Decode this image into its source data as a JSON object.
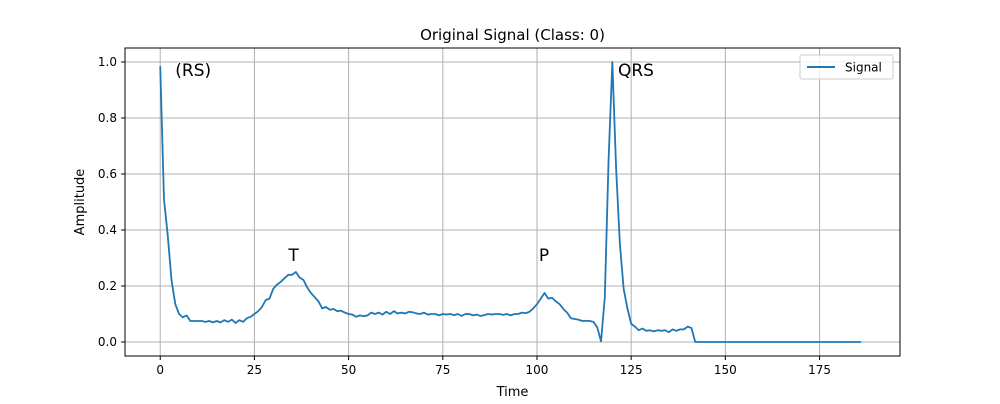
{
  "chart_data": {
    "type": "line",
    "title": "Original Signal (Class: 0)",
    "xlabel": "Time",
    "ylabel": "Amplitude",
    "xlim": [
      -9.35,
      196.35
    ],
    "ylim": [
      -0.05,
      1.05
    ],
    "xticks": [
      0,
      25,
      50,
      75,
      100,
      125,
      150,
      175
    ],
    "yticks": [
      0.0,
      0.2,
      0.4,
      0.6,
      0.8,
      1.0
    ],
    "xtick_labels": [
      "0",
      "25",
      "50",
      "75",
      "100",
      "125",
      "150",
      "175"
    ],
    "ytick_labels": [
      "0.0",
      "0.2",
      "0.4",
      "0.6",
      "0.8",
      "1.0"
    ],
    "grid": true,
    "legend": {
      "position": "upper-right",
      "entries": [
        "Signal"
      ]
    },
    "colors": {
      "signal": "#1f77b4",
      "grid": "#b0b0b0"
    },
    "annotations": [
      {
        "text": "(RS)",
        "x": 4,
        "y": 0.95
      },
      {
        "text": "T",
        "x": 34,
        "y": 0.29
      },
      {
        "text": "P",
        "x": 100.5,
        "y": 0.29
      },
      {
        "text": "QRS",
        "x": 121.5,
        "y": 0.95
      }
    ],
    "series": [
      {
        "name": "Signal",
        "x": [
          0,
          1,
          2,
          3,
          4,
          5,
          6,
          7,
          8,
          9,
          10,
          11,
          12,
          13,
          14,
          15,
          16,
          17,
          18,
          19,
          20,
          21,
          22,
          23,
          24,
          25,
          26,
          27,
          28,
          29,
          30,
          31,
          32,
          33,
          34,
          35,
          36,
          37,
          38,
          39,
          40,
          41,
          42,
          43,
          44,
          45,
          46,
          47,
          48,
          49,
          50,
          51,
          52,
          53,
          54,
          55,
          56,
          57,
          58,
          59,
          60,
          61,
          62,
          63,
          64,
          65,
          66,
          67,
          68,
          69,
          70,
          71,
          72,
          73,
          74,
          75,
          76,
          77,
          78,
          79,
          80,
          81,
          82,
          83,
          84,
          85,
          86,
          87,
          88,
          89,
          90,
          91,
          92,
          93,
          94,
          95,
          96,
          97,
          98,
          99,
          100,
          101,
          102,
          103,
          104,
          105,
          106,
          107,
          108,
          109,
          110,
          111,
          112,
          113,
          114,
          115,
          116,
          117,
          118,
          119,
          120,
          121,
          122,
          123,
          124,
          125,
          126,
          127,
          128,
          129,
          130,
          131,
          132,
          133,
          134,
          135,
          136,
          137,
          138,
          139,
          140,
          141,
          142,
          143,
          144,
          145,
          146,
          147,
          148,
          149,
          150,
          151,
          152,
          153,
          154,
          155,
          156,
          157,
          158,
          159,
          160,
          161,
          162,
          163,
          164,
          165,
          166,
          167,
          168,
          169,
          170,
          171,
          172,
          173,
          174,
          175,
          176,
          177,
          178,
          179,
          180,
          181,
          182,
          183,
          184,
          185,
          186
        ],
        "values": [
          0.985,
          0.51,
          0.38,
          0.22,
          0.135,
          0.1,
          0.088,
          0.095,
          0.075,
          0.075,
          0.075,
          0.075,
          0.072,
          0.075,
          0.07,
          0.075,
          0.07,
          0.078,
          0.072,
          0.08,
          0.068,
          0.078,
          0.072,
          0.085,
          0.09,
          0.1,
          0.11,
          0.125,
          0.15,
          0.155,
          0.19,
          0.205,
          0.215,
          0.228,
          0.24,
          0.24,
          0.25,
          0.23,
          0.222,
          0.195,
          0.175,
          0.16,
          0.145,
          0.12,
          0.125,
          0.115,
          0.118,
          0.11,
          0.112,
          0.105,
          0.1,
          0.098,
          0.09,
          0.095,
          0.092,
          0.095,
          0.105,
          0.1,
          0.105,
          0.098,
          0.108,
          0.1,
          0.11,
          0.102,
          0.105,
          0.102,
          0.108,
          0.106,
          0.102,
          0.1,
          0.105,
          0.098,
          0.1,
          0.1,
          0.095,
          0.1,
          0.098,
          0.1,
          0.096,
          0.1,
          0.093,
          0.1,
          0.1,
          0.095,
          0.098,
          0.093,
          0.096,
          0.1,
          0.098,
          0.1,
          0.1,
          0.097,
          0.1,
          0.095,
          0.1,
          0.1,
          0.105,
          0.103,
          0.108,
          0.12,
          0.135,
          0.155,
          0.175,
          0.155,
          0.158,
          0.145,
          0.135,
          0.118,
          0.105,
          0.085,
          0.082,
          0.08,
          0.075,
          0.076,
          0.075,
          0.072,
          0.052,
          0.002,
          0.16,
          0.65,
          1.0,
          0.62,
          0.35,
          0.19,
          0.12,
          0.065,
          0.055,
          0.042,
          0.048,
          0.04,
          0.042,
          0.038,
          0.042,
          0.04,
          0.042,
          0.035,
          0.045,
          0.04,
          0.045,
          0.045,
          0.055,
          0.05,
          0.0,
          0.0,
          0.0,
          0.0,
          0.0,
          0.0,
          0.0,
          0.0,
          0.0,
          0.0,
          0.0,
          0.0,
          0.0,
          0.0,
          0.0,
          0.0,
          0.0,
          0.0,
          0.0,
          0.0,
          0.0,
          0.0,
          0.0,
          0.0,
          0.0,
          0.0,
          0.0,
          0.0,
          0.0,
          0.0,
          0.0,
          0.0,
          0.0,
          0.0,
          0.0,
          0.0,
          0.0,
          0.0,
          0.0,
          0.0,
          0.0,
          0.0,
          0.0,
          0.0,
          0.0
        ]
      }
    ]
  }
}
